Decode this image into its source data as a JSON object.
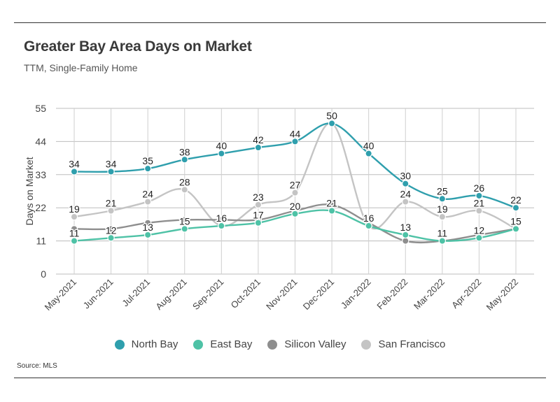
{
  "header": {
    "title": "Greater Bay Area Days on Market",
    "subtitle": "TTM, Single-Family Home"
  },
  "footer": {
    "source": "Source:  MLS"
  },
  "chart_data": {
    "type": "line",
    "title": "Greater Bay Area Days on Market",
    "subtitle": "TTM, Single-Family Home",
    "ylabel": "Days on Market",
    "xlabel": "",
    "ylim": [
      0,
      55
    ],
    "yticks": [
      0,
      11,
      22,
      33,
      44,
      55
    ],
    "grid": true,
    "legend_position": "bottom",
    "categories": [
      "May-2021",
      "Jun-2021",
      "Jul-2021",
      "Aug-2021",
      "Sep-2021",
      "Oct-2021",
      "Nov-2021",
      "Dec-2021",
      "Jan-2022",
      "Feb-2022",
      "Mar-2022",
      "Apr-2022",
      "May-2022"
    ],
    "series": [
      {
        "name": "San Francisco",
        "color": "#c4c4c4",
        "labeled": true,
        "values": [
          19,
          21,
          24,
          28,
          16,
          23,
          27,
          50,
          16,
          24,
          19,
          21,
          15
        ]
      },
      {
        "name": "Silicon Valley",
        "color": "#8e8e8e",
        "labeled": false,
        "values": [
          15,
          15,
          17,
          18,
          18,
          18,
          21,
          23,
          17,
          11,
          11,
          13,
          15
        ]
      },
      {
        "name": "East Bay",
        "color": "#4ec2a6",
        "labeled": true,
        "values": [
          11,
          12,
          13,
          15,
          16,
          17,
          20,
          21,
          16,
          13,
          11,
          12,
          15
        ]
      },
      {
        "name": "North Bay",
        "color": "#2f9fad",
        "labeled": true,
        "values": [
          34,
          34,
          35,
          38,
          40,
          42,
          44,
          50,
          40,
          30,
          25,
          26,
          22
        ]
      }
    ],
    "legend": [
      "North Bay",
      "East Bay",
      "Silicon Valley",
      "San Francisco"
    ]
  }
}
